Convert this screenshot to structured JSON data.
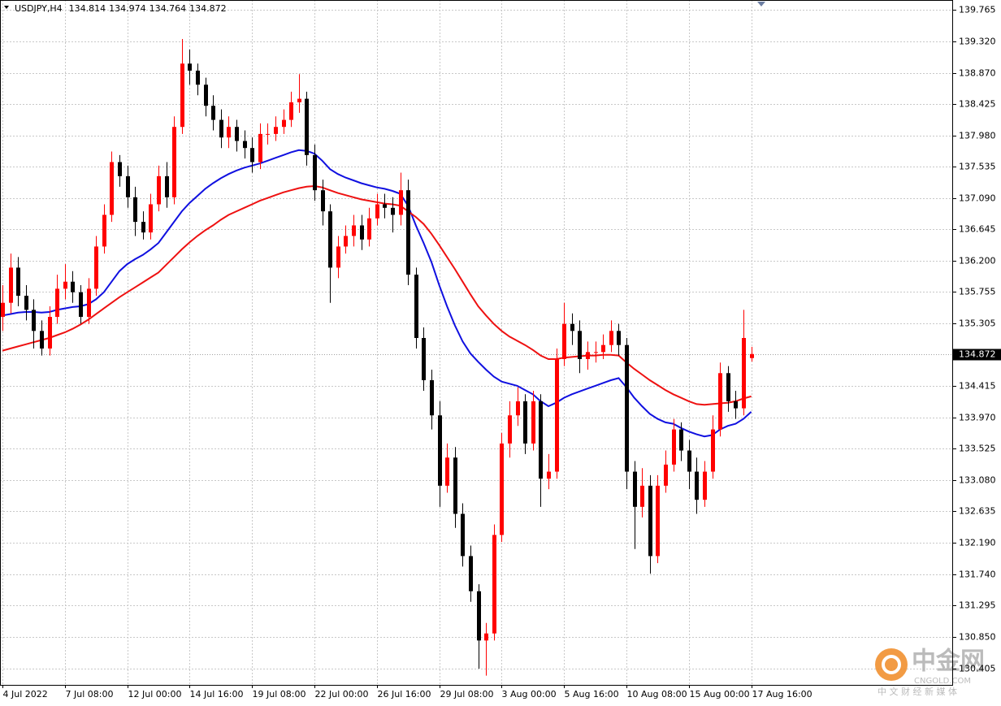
{
  "chart_data": {
    "type": "candlestick",
    "title": "USDJPY,H4",
    "up_color": "#ff0000",
    "down_color": "#000000",
    "grid": true,
    "categories": [
      "4 Jul 2022",
      null,
      null,
      null,
      null,
      null,
      null,
      null,
      "7 Jul 08:00",
      null,
      null,
      null,
      null,
      null,
      null,
      null,
      "12 Jul 00:00",
      null,
      null,
      null,
      null,
      null,
      null,
      null,
      "14 Jul 16:00",
      null,
      null,
      null,
      null,
      null,
      null,
      null,
      "19 Jul 08:00",
      null,
      null,
      null,
      null,
      null,
      null,
      null,
      "22 Jul 00:00",
      null,
      null,
      null,
      null,
      null,
      null,
      null,
      "26 Jul 16:00",
      null,
      null,
      null,
      null,
      null,
      null,
      null,
      "29 Jul 08:00",
      null,
      null,
      null,
      null,
      null,
      null,
      null,
      "3 Aug 00:00",
      null,
      null,
      null,
      null,
      null,
      null,
      null,
      "5 Aug 16:00",
      null,
      null,
      null,
      null,
      null,
      null,
      null,
      "10 Aug 08:00",
      null,
      null,
      null,
      null,
      null,
      null,
      null,
      "15 Aug 00:00",
      null,
      null,
      null,
      null,
      null,
      null,
      null,
      "17 Aug 16:00"
    ],
    "open": [
      135.4,
      135.6,
      136.1,
      135.7,
      135.5,
      135.2,
      134.95,
      135.4,
      135.8,
      135.9,
      135.75,
      135.4,
      135.8,
      136.4,
      136.85,
      137.6,
      137.4,
      137.1,
      136.75,
      136.6,
      137.0,
      137.4,
      137.1,
      138.1,
      139.0,
      138.9,
      138.7,
      138.4,
      138.2,
      137.95,
      138.1,
      137.9,
      137.8,
      137.6,
      138.0,
      138.0,
      138.1,
      138.2,
      138.45,
      138.5,
      137.7,
      137.2,
      136.9,
      136.1,
      136.4,
      136.55,
      136.7,
      136.5,
      136.8,
      137.0,
      136.95,
      136.85,
      137.2,
      136.0,
      135.1,
      134.5,
      134.0,
      133.0,
      133.4,
      132.6,
      132.0,
      131.5,
      130.8,
      130.9,
      132.3,
      133.6,
      134.0,
      134.2,
      133.6,
      134.2,
      133.1,
      133.2,
      134.8,
      135.3,
      135.2,
      134.8,
      134.9,
      134.9,
      135.0,
      135.2,
      135.0,
      133.2,
      132.7,
      133.0,
      132.0,
      133.0,
      133.3,
      133.8,
      133.5,
      133.2,
      132.8,
      133.2,
      133.8,
      134.6,
      134.2,
      134.1,
      134.814
    ],
    "high": [
      135.85,
      136.3,
      136.25,
      135.85,
      135.65,
      135.35,
      135.55,
      136.0,
      136.15,
      136.05,
      135.85,
      135.95,
      136.55,
      137.0,
      137.75,
      137.7,
      137.55,
      137.25,
      136.9,
      137.15,
      137.55,
      137.6,
      138.25,
      139.35,
      139.2,
      139.0,
      138.8,
      138.55,
      138.35,
      138.25,
      138.2,
      138.05,
      137.95,
      138.15,
      138.15,
      138.25,
      138.35,
      138.6,
      138.85,
      138.6,
      137.85,
      137.35,
      137.0,
      136.55,
      136.7,
      136.85,
      136.85,
      136.95,
      137.15,
      137.15,
      137.1,
      137.45,
      137.35,
      136.1,
      135.25,
      134.65,
      134.2,
      133.6,
      133.55,
      132.75,
      132.15,
      131.6,
      131.05,
      132.45,
      133.75,
      134.2,
      134.4,
      134.3,
      134.35,
      134.3,
      133.45,
      134.95,
      135.6,
      135.45,
      135.35,
      135.05,
      135.05,
      135.15,
      135.35,
      135.3,
      135.1,
      133.35,
      133.25,
      133.15,
      133.15,
      133.5,
      133.95,
      133.9,
      133.65,
      133.4,
      133.35,
      134.0,
      134.75,
      134.7,
      134.35,
      135.5,
      134.974
    ],
    "low": [
      135.2,
      135.45,
      135.55,
      135.35,
      134.95,
      134.85,
      134.85,
      135.3,
      135.65,
      135.6,
      135.3,
      135.3,
      135.7,
      136.3,
      136.75,
      137.25,
      136.95,
      136.55,
      136.5,
      136.5,
      136.9,
      136.95,
      137.0,
      138.0,
      138.7,
      138.55,
      138.25,
      138.05,
      137.8,
      137.8,
      137.75,
      137.65,
      137.45,
      137.5,
      137.85,
      137.9,
      138.0,
      138.1,
      138.3,
      137.55,
      137.05,
      136.7,
      135.6,
      135.95,
      136.3,
      136.4,
      136.35,
      136.4,
      136.7,
      136.8,
      136.6,
      136.7,
      135.85,
      134.95,
      134.35,
      133.8,
      132.7,
      132.9,
      132.4,
      131.85,
      131.35,
      130.4,
      130.3,
      130.8,
      132.2,
      133.4,
      133.85,
      133.45,
      133.5,
      132.7,
      132.95,
      133.1,
      134.7,
      135.0,
      134.6,
      134.65,
      134.75,
      134.8,
      134.9,
      134.85,
      132.95,
      132.1,
      132.55,
      131.75,
      131.9,
      132.9,
      133.2,
      133.35,
      132.95,
      132.6,
      132.7,
      133.1,
      133.7,
      134.05,
      133.95,
      134.0,
      134.764
    ],
    "close": [
      135.6,
      136.1,
      135.7,
      135.5,
      135.2,
      134.95,
      135.4,
      135.8,
      135.9,
      135.75,
      135.4,
      135.8,
      136.4,
      136.85,
      137.6,
      137.4,
      137.1,
      136.75,
      136.6,
      137.0,
      137.4,
      137.1,
      138.1,
      139.0,
      138.9,
      138.7,
      138.4,
      138.2,
      137.95,
      138.1,
      137.9,
      137.8,
      137.6,
      138.0,
      138.0,
      138.1,
      138.2,
      138.45,
      138.5,
      137.7,
      137.2,
      136.9,
      136.1,
      136.4,
      136.55,
      136.7,
      136.5,
      136.8,
      137.0,
      136.95,
      136.85,
      137.2,
      136.0,
      135.1,
      134.5,
      134.0,
      133.0,
      133.4,
      132.6,
      132.0,
      131.5,
      130.8,
      130.9,
      132.3,
      133.6,
      134.0,
      134.2,
      133.6,
      134.2,
      133.1,
      133.2,
      134.8,
      135.3,
      135.2,
      134.8,
      134.9,
      134.9,
      135.0,
      135.2,
      135.0,
      133.2,
      132.7,
      133.0,
      132.0,
      133.0,
      133.3,
      133.8,
      133.5,
      133.2,
      132.8,
      133.2,
      133.8,
      134.6,
      134.2,
      134.1,
      135.1,
      134.872
    ],
    "series": [
      {
        "color": "#1010e0",
        "values": [
          135.42,
          135.44,
          135.46,
          135.47,
          135.47,
          135.46,
          135.47,
          135.5,
          135.52,
          135.54,
          135.55,
          135.58,
          135.65,
          135.75,
          135.9,
          136.05,
          136.15,
          136.22,
          136.28,
          136.36,
          136.45,
          136.6,
          136.75,
          136.9,
          137.02,
          137.12,
          137.22,
          137.3,
          137.37,
          137.43,
          137.48,
          137.52,
          137.55,
          137.58,
          137.62,
          137.66,
          137.7,
          137.74,
          137.77,
          137.76,
          137.72,
          137.62,
          137.5,
          137.43,
          137.38,
          137.34,
          137.3,
          137.27,
          137.24,
          137.22,
          137.19,
          137.15,
          136.98,
          136.7,
          136.45,
          136.18,
          135.85,
          135.55,
          135.28,
          135.05,
          134.88,
          134.76,
          134.65,
          134.55,
          134.48,
          134.45,
          134.42,
          134.36,
          134.3,
          134.2,
          134.13,
          134.18,
          134.25,
          134.3,
          134.34,
          134.38,
          134.42,
          134.46,
          134.5,
          134.53,
          134.4,
          134.25,
          134.13,
          134.02,
          133.95,
          133.9,
          133.88,
          133.82,
          133.77,
          133.73,
          133.7,
          133.72,
          133.8,
          133.85,
          133.88,
          133.95,
          134.05
        ]
      },
      {
        "color": "#ee1111",
        "values": [
          134.92,
          134.95,
          134.98,
          135.01,
          135.04,
          135.07,
          135.1,
          135.14,
          135.18,
          135.23,
          135.29,
          135.36,
          135.44,
          135.52,
          135.6,
          135.68,
          135.75,
          135.82,
          135.89,
          135.96,
          136.03,
          136.14,
          136.25,
          136.36,
          136.46,
          136.55,
          136.63,
          136.7,
          136.78,
          136.85,
          136.9,
          136.95,
          137.0,
          137.05,
          137.09,
          137.13,
          137.17,
          137.2,
          137.23,
          137.25,
          137.26,
          137.24,
          137.2,
          137.16,
          137.13,
          137.1,
          137.07,
          137.05,
          137.03,
          137.01,
          137.0,
          136.98,
          136.9,
          136.82,
          136.72,
          136.58,
          136.42,
          136.25,
          136.08,
          135.9,
          135.72,
          135.55,
          135.42,
          135.3,
          135.2,
          135.12,
          135.06,
          135.0,
          134.93,
          134.85,
          134.8,
          134.8,
          134.82,
          134.83,
          134.84,
          134.85,
          134.85,
          134.86,
          134.86,
          134.85,
          134.75,
          134.66,
          134.58,
          134.5,
          134.43,
          134.36,
          134.3,
          134.25,
          134.2,
          134.16,
          134.15,
          134.16,
          134.17,
          134.18,
          134.2,
          134.24,
          134.27
        ]
      }
    ],
    "ylim": [
      130.169,
      139.904
    ],
    "yticks": [
      139.765,
      {
        "value": 139.32,
        "label": "139.320"
      },
      {
        "value": 138.87,
        "label": "138.870"
      },
      138.425,
      {
        "value": 137.98,
        "label": "137.980"
      },
      137.535,
      {
        "value": 137.09,
        "label": "137.090"
      },
      136.645,
      {
        "value": 136.2,
        "label": "136.200"
      },
      135.755,
      135.305,
      134.415,
      {
        "value": 133.97,
        "label": "133.970"
      },
      133.525,
      {
        "value": 133.08,
        "label": "133.080"
      },
      132.635,
      {
        "value": 132.19,
        "label": "132.190"
      },
      {
        "value": 131.74,
        "label": "131.740"
      },
      131.295,
      {
        "value": 130.85,
        "label": "130.850"
      },
      130.405
    ],
    "watermark": {
      "brand": "中金网",
      "domain": "CNGOLD.COM",
      "slogan": "中 文 财 经 新 媒 体"
    }
  }
}
